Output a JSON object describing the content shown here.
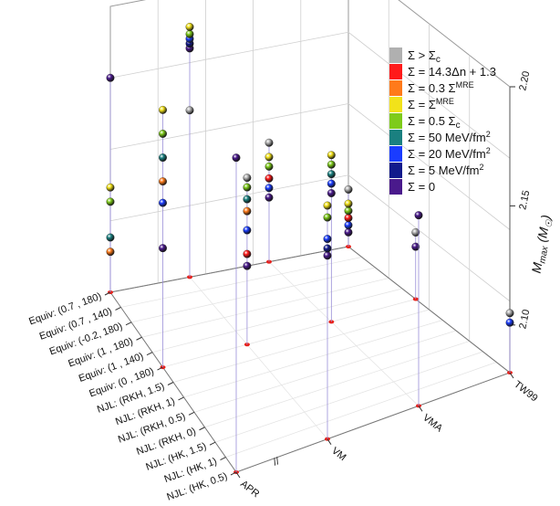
{
  "chart_data": {
    "type": "scatter3d",
    "title": "",
    "zlabel": "M_max (M_sun)",
    "z_ticks": [
      "2.10",
      "2.15",
      "2.20"
    ],
    "zlim": [
      2.08,
      2.2
    ],
    "x_ticks": [
      "APR",
      "VM",
      "VMA",
      "TW99"
    ],
    "y_ticks": [
      "Equiv: (0.7 , 180)",
      "Equiv: (0.7 , 140)",
      "Equiv: (-0.2, 180)",
      "Equiv: (1 , 180)",
      "Equiv: (1 , 140)",
      "Equiv: (0 , 180)",
      "NJL: (RKH, 1.5)",
      "NJL: (RKH, 1)",
      "NJL: (RKH, 0.5)",
      "NJL: (RKH, 0)",
      "NJL: (HK, 1.5)",
      "NJL: (HK, 1)",
      "NJL: (HK, 0.5)"
    ],
    "axis_break_symbol": "//",
    "legend": [
      {
        "label": "Σ > Σc",
        "color": "#b0b0b0"
      },
      {
        "label": "Σ = 14.3Δn + 1.3",
        "color": "#ff1a1a"
      },
      {
        "label": "Σ = 0.3 Σ^MRE",
        "color": "#ff7a1a"
      },
      {
        "label": "Σ = Σ^MRE",
        "color": "#f2e21a"
      },
      {
        "label": "Σ = 0.5 Σc",
        "color": "#7ecb1a"
      },
      {
        "label": "Σ = 50 MeV/fm²",
        "color": "#1a8080"
      },
      {
        "label": "Σ = 20 MeV/fm²",
        "color": "#1a3cff"
      },
      {
        "label": "Σ = 5 MeV/fm²",
        "color": "#121a8c"
      },
      {
        "label": "Σ = 0",
        "color": "#4a1a8c"
      }
    ],
    "columns": [
      {
        "x": 0,
        "y": 0,
        "points": [
          {
            "s": 8,
            "z": 2.17
          }
        ]
      },
      {
        "x": 0,
        "y": 0,
        "points": [
          {
            "s": 3,
            "z": 2.124
          },
          {
            "s": 4,
            "z": 2.118
          },
          {
            "s": 5,
            "z": 2.103
          },
          {
            "s": 2,
            "z": 2.097
          }
        ]
      },
      {
        "x": 0,
        "y": 12,
        "points": [
          {
            "s": 8,
            "z": 2.212
          }
        ]
      },
      {
        "x": 1,
        "y": 12,
        "points": [
          {
            "s": 3,
            "z": 2.178
          },
          {
            "s": 4,
            "z": 2.173
          },
          {
            "s": 6,
            "z": 2.164
          },
          {
            "s": 7,
            "z": 2.16
          },
          {
            "s": 8,
            "z": 2.157
          }
        ]
      },
      {
        "x": 0,
        "y": 5,
        "points": [
          {
            "s": 3,
            "z": 2.188
          },
          {
            "s": 4,
            "z": 2.178
          },
          {
            "s": 5,
            "z": 2.168
          },
          {
            "s": 2,
            "z": 2.158
          },
          {
            "s": 6,
            "z": 2.149
          },
          {
            "s": 8,
            "z": 2.13
          }
        ]
      },
      {
        "x": 1,
        "y": 5,
        "points": [
          {
            "s": 0,
            "z": 2.15
          },
          {
            "s": 4,
            "z": 2.146
          },
          {
            "s": 5,
            "z": 2.141
          },
          {
            "s": 2,
            "z": 2.136
          },
          {
            "s": 6,
            "z": 2.128
          },
          {
            "s": 1,
            "z": 2.118
          },
          {
            "s": 8,
            "z": 2.113
          }
        ]
      },
      {
        "x": 1,
        "y": 0,
        "points": [
          {
            "s": 0,
            "z": 2.15
          },
          {
            "s": 3,
            "z": 2.185
          },
          {
            "s": 4,
            "z": 2.182
          },
          {
            "s": 6,
            "z": 2.18
          },
          {
            "s": 7,
            "z": 2.178
          },
          {
            "s": 8,
            "z": 2.176
          }
        ]
      },
      {
        "x": 2,
        "y": 12,
        "points": [
          {
            "s": 8,
            "z": 2.16
          }
        ]
      },
      {
        "x": 2,
        "y": 5,
        "points": [
          {
            "s": 3,
            "z": 2.15
          },
          {
            "s": 4,
            "z": 2.146
          },
          {
            "s": 5,
            "z": 2.142
          },
          {
            "s": 6,
            "z": 2.138
          },
          {
            "s": 8,
            "z": 2.134
          }
        ]
      },
      {
        "x": 2,
        "y": 0,
        "points": [
          {
            "s": 0,
            "z": 2.13
          },
          {
            "s": 3,
            "z": 2.124
          },
          {
            "s": 4,
            "z": 2.12
          },
          {
            "s": 1,
            "z": 2.115
          },
          {
            "s": 6,
            "z": 2.111
          },
          {
            "s": 8,
            "z": 2.107
          }
        ]
      },
      {
        "x": 3,
        "y": 12,
        "points": [
          {
            "s": 0,
            "z": 2.105
          },
          {
            "s": 6,
            "z": 2.101
          }
        ]
      },
      {
        "x": 3,
        "y": 5,
        "points": [
          {
            "s": 0,
            "z": 2.108
          },
          {
            "s": 8,
            "z": 2.102
          }
        ]
      },
      {
        "x": 3,
        "y": 0,
        "points": [
          {
            "s": 0,
            "z": 2.104
          },
          {
            "s": 3,
            "z": 2.098
          },
          {
            "s": 4,
            "z": 2.095
          },
          {
            "s": 1,
            "z": 2.092
          },
          {
            "s": 6,
            "z": 2.089
          },
          {
            "s": 8,
            "z": 2.086
          }
        ]
      }
    ]
  }
}
